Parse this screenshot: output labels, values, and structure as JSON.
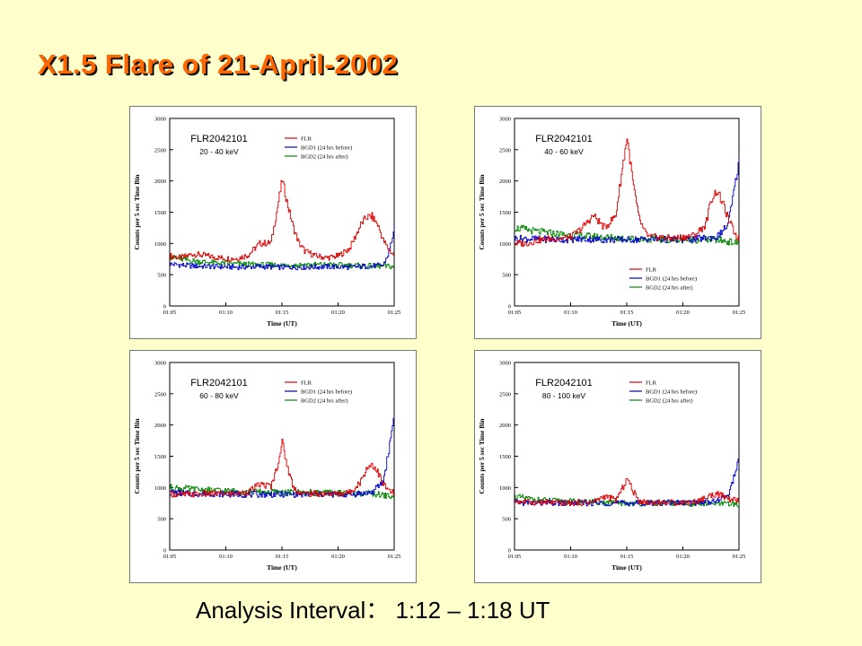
{
  "title": "X1.5 Flare of 21-April-2002",
  "caption": "Analysis Interval： 1:12 – 1:18 UT",
  "colors": {
    "FLR": "#dd0000",
    "BGD1": "#0000cc",
    "BGD2": "#008800",
    "background": "#ffffcc",
    "title": "#ff6600"
  },
  "chart_data": [
    {
      "type": "line",
      "detector": "FLR2042101",
      "energy": "20 - 40 keV",
      "legend_position": "top-right",
      "xlabel": "Time (UT)",
      "ylabel": "Counts per 5 sec Time Bin",
      "xlim": [
        5,
        25
      ],
      "ylim": [
        0,
        3000
      ],
      "xticks": [
        "01:05",
        "01:10",
        "01:15",
        "01:20",
        "01:25"
      ],
      "yticks": [
        "0",
        "500",
        "1000",
        "1500",
        "2000",
        "2500",
        "3000"
      ],
      "series": [
        {
          "name": "FLR",
          "x": [
            5,
            6,
            7,
            8,
            9,
            10,
            11,
            12,
            13,
            14,
            14.5,
            15,
            15.5,
            16,
            16.5,
            17,
            18,
            19,
            20,
            21,
            22,
            22.5,
            23,
            23.5,
            24,
            24.5,
            25
          ],
          "y": [
            800,
            770,
            830,
            810,
            780,
            760,
            760,
            820,
            1000,
            1010,
            1500,
            2020,
            1600,
            1250,
            1000,
            880,
            800,
            770,
            800,
            920,
            1300,
            1420,
            1430,
            1300,
            1050,
            900,
            800
          ]
        },
        {
          "name": "BGD1 (24 hrs before)",
          "x": [
            5,
            7,
            9,
            11,
            13,
            15,
            17,
            19,
            21,
            23,
            24,
            24.5,
            25
          ],
          "y": [
            670,
            640,
            630,
            620,
            630,
            620,
            620,
            630,
            620,
            640,
            650,
            850,
            1240
          ]
        },
        {
          "name": "BGD2 (24 hrs after)",
          "x": [
            5,
            7,
            9,
            11,
            13,
            15,
            17,
            19,
            21,
            23,
            25
          ],
          "y": [
            780,
            720,
            690,
            670,
            660,
            650,
            660,
            660,
            650,
            640,
            630
          ]
        }
      ]
    },
    {
      "type": "line",
      "detector": "FLR2042101",
      "energy": "40 - 60 keV",
      "legend_position": "bottom-right",
      "xlabel": "Time (UT)",
      "ylabel": "Counts per 5 sec Time Bin",
      "xlim": [
        5,
        25
      ],
      "ylim": [
        0,
        3000
      ],
      "xticks": [
        "01:05",
        "01:10",
        "01:15",
        "01:20",
        "01:25"
      ],
      "yticks": [
        "0",
        "500",
        "1000",
        "1500",
        "2000",
        "2500",
        "3000"
      ],
      "series": [
        {
          "name": "FLR",
          "x": [
            5,
            6,
            7,
            8,
            9,
            10,
            11,
            12,
            13,
            14,
            14.5,
            15,
            15.5,
            16,
            16.5,
            17,
            18,
            19,
            20,
            21,
            22,
            22.5,
            23,
            23.5,
            24,
            24.5,
            25
          ],
          "y": [
            1000,
            1000,
            1050,
            1070,
            1080,
            1100,
            1250,
            1450,
            1250,
            1450,
            2100,
            2700,
            2000,
            1450,
            1200,
            1100,
            1100,
            1080,
            1100,
            1130,
            1300,
            1700,
            1850,
            1650,
            1400,
            1200,
            1050
          ]
        },
        {
          "name": "BGD1 (24 hrs before)",
          "x": [
            5,
            7,
            9,
            11,
            13,
            15,
            17,
            19,
            21,
            23,
            24,
            24.5,
            25
          ],
          "y": [
            1080,
            1070,
            1060,
            1070,
            1060,
            1060,
            1070,
            1060,
            1070,
            1100,
            1300,
            1800,
            2350
          ]
        },
        {
          "name": "BGD2 (24 hrs after)",
          "x": [
            5,
            7,
            9,
            11,
            13,
            15,
            17,
            19,
            21,
            23,
            25
          ],
          "y": [
            1250,
            1190,
            1150,
            1120,
            1100,
            1080,
            1070,
            1060,
            1060,
            1060,
            1000
          ]
        }
      ]
    },
    {
      "type": "line",
      "detector": "FLR2042101",
      "energy": "60 - 80 keV",
      "legend_position": "top-right",
      "xlabel": "Time (UT)",
      "ylabel": "Counts per 5 sec Time Bin",
      "xlim": [
        5,
        25
      ],
      "ylim": [
        0,
        3000
      ],
      "xticks": [
        "01:05",
        "01:10",
        "01:15",
        "01:20",
        "01:25"
      ],
      "yticks": [
        "0",
        "500",
        "1000",
        "1500",
        "2000",
        "2500",
        "3000"
      ],
      "series": [
        {
          "name": "FLR",
          "x": [
            5,
            6,
            7,
            8,
            9,
            10,
            11,
            12,
            13,
            14,
            14.5,
            15,
            15.5,
            16,
            16.5,
            17,
            18,
            19,
            20,
            21,
            22,
            22.5,
            23,
            23.5,
            24,
            24.5,
            25
          ],
          "y": [
            900,
            880,
            890,
            900,
            900,
            900,
            900,
            930,
            1050,
            1020,
            1300,
            1720,
            1300,
            1000,
            920,
            900,
            900,
            900,
            900,
            920,
            1100,
            1300,
            1380,
            1250,
            1050,
            950,
            900
          ]
        },
        {
          "name": "BGD1 (24 hrs before)",
          "x": [
            5,
            7,
            9,
            11,
            13,
            15,
            17,
            19,
            21,
            23,
            24,
            24.5,
            25
          ],
          "y": [
            920,
            900,
            900,
            890,
            890,
            890,
            890,
            890,
            890,
            920,
            1100,
            1600,
            2200
          ]
        },
        {
          "name": "BGD2 (24 hrs after)",
          "x": [
            5,
            7,
            9,
            11,
            13,
            15,
            17,
            19,
            21,
            23,
            25
          ],
          "y": [
            1000,
            970,
            950,
            940,
            930,
            920,
            920,
            910,
            910,
            900,
            850
          ]
        }
      ]
    },
    {
      "type": "line",
      "detector": "FLR2042101",
      "energy": "80 - 100 keV",
      "legend_position": "top-right",
      "xlabel": "Time (UT)",
      "ylabel": "Counts per 5 sec Time Bin",
      "xlim": [
        5,
        25
      ],
      "ylim": [
        0,
        3000
      ],
      "xticks": [
        "01:05",
        "01:10",
        "01:15",
        "01:20",
        "01:25"
      ],
      "yticks": [
        "0",
        "500",
        "1000",
        "1500",
        "2000",
        "2500",
        "3000"
      ],
      "series": [
        {
          "name": "FLR",
          "x": [
            5,
            6,
            7,
            8,
            9,
            10,
            11,
            12,
            13,
            14,
            14.5,
            15,
            15.5,
            16,
            16.5,
            17,
            18,
            19,
            20,
            21,
            22,
            22.5,
            23,
            23.5,
            24,
            24.5,
            25
          ],
          "y": [
            780,
            770,
            760,
            760,
            750,
            750,
            760,
            770,
            860,
            800,
            950,
            1150,
            950,
            800,
            770,
            760,
            760,
            760,
            760,
            770,
            830,
            880,
            900,
            860,
            820,
            800,
            790
          ]
        },
        {
          "name": "BGD1 (24 hrs before)",
          "x": [
            5,
            7,
            9,
            11,
            13,
            15,
            17,
            19,
            21,
            23,
            24,
            24.5,
            25
          ],
          "y": [
            760,
            750,
            750,
            750,
            750,
            750,
            750,
            760,
            760,
            780,
            880,
            1150,
            1480
          ]
        },
        {
          "name": "BGD2 (24 hrs after)",
          "x": [
            5,
            7,
            9,
            11,
            13,
            15,
            17,
            19,
            21,
            23,
            25
          ],
          "y": [
            850,
            800,
            780,
            770,
            760,
            750,
            750,
            750,
            740,
            740,
            730
          ]
        }
      ]
    }
  ]
}
